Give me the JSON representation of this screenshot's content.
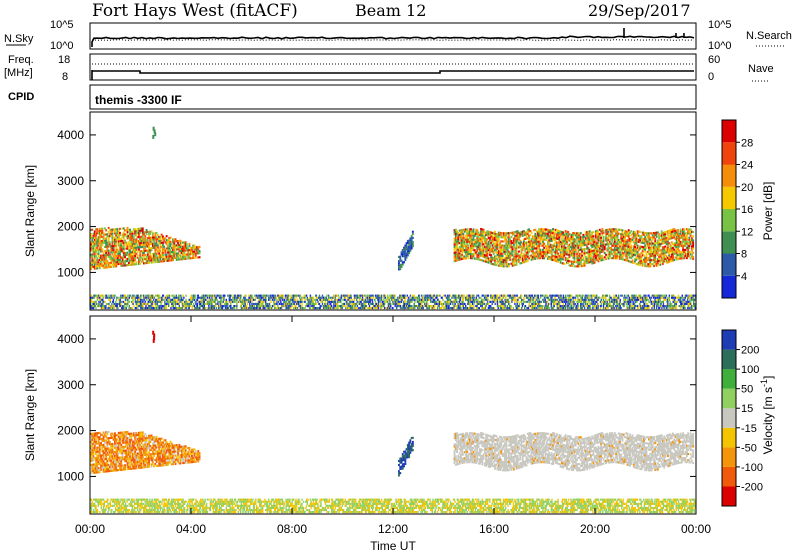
{
  "header": {
    "site": "Fort Hays West (fitACF)",
    "beam": "Beam 12",
    "date": "29/Sep/2017"
  },
  "top_panels": {
    "nsky_label": "N.Sky",
    "nsearch_label": "N.Search",
    "nsky_ticks": [
      "10^5",
      "10^0"
    ],
    "nsearch_ticks": [
      "10^5",
      "10^0"
    ],
    "freq_label_1": "Freq.",
    "freq_label_2": "[MHz]",
    "freq_ticks": [
      "18",
      "8"
    ],
    "nave_label": "Nave",
    "nave_ticks": [
      "60",
      "0"
    ],
    "cpid_label": "CPID",
    "cpid_text": "themis -3300 IF"
  },
  "chart_data": [
    {
      "type": "heatmap",
      "name": "power",
      "ylabel": "Slant Range [km]",
      "xlabel": "",
      "ylim": [
        180,
        4500
      ],
      "xlim_hours": [
        0,
        24
      ],
      "yticks": [
        1000,
        2000,
        3000,
        4000
      ],
      "colorbar_label": "Power [dB]",
      "colorbar_ticks": [
        "4",
        "8",
        "12",
        "16",
        "20",
        "24",
        "28"
      ],
      "colors": [
        "#1428d8",
        "#2c5aa8",
        "#3f8f52",
        "#78c244",
        "#f6c800",
        "#f58c0a",
        "#f0440c",
        "#dc0000"
      ],
      "regions": [
        {
          "t0": 0.0,
          "t1": 4.3,
          "r0": 1050,
          "r1": 1950,
          "level": "mixed-high",
          "note": "echo band"
        },
        {
          "t0": 14.4,
          "t1": 23.9,
          "r0": 1200,
          "r1": 2000,
          "level": "high",
          "note": "echo band"
        },
        {
          "t0": 12.2,
          "t1": 12.8,
          "r0": 1000,
          "r1": 1900,
          "level": "low"
        },
        {
          "t0": 0.0,
          "t1": 24.0,
          "r0": 200,
          "r1": 500,
          "level": "noise"
        }
      ]
    },
    {
      "type": "heatmap",
      "name": "velocity",
      "ylabel": "Slant Range [km]",
      "xlabel": "Time UT",
      "ylim": [
        180,
        4500
      ],
      "xlim_hours": [
        0,
        24
      ],
      "yticks": [
        1000,
        2000,
        3000,
        4000
      ],
      "xticks": [
        "00:00",
        "04:00",
        "08:00",
        "12:00",
        "16:00",
        "20:00",
        "00:00"
      ],
      "colorbar_label": "Velocity [m s^-1]",
      "colorbar_ticks": [
        "200",
        "100",
        "50",
        "15",
        "-15",
        "-50",
        "-100",
        "-200"
      ],
      "colors": [
        "#1e3cb4",
        "#2c6e5a",
        "#3fae3a",
        "#8fd060",
        "#c8c8c0",
        "#f4c400",
        "#f4940a",
        "#f05a0a",
        "#dc0000"
      ],
      "regions": [
        {
          "t0": 0.0,
          "t1": 4.3,
          "r0": 1050,
          "r1": 1950,
          "level": "negative"
        },
        {
          "t0": 14.4,
          "t1": 23.9,
          "r0": 1100,
          "r1": 2050,
          "level": "ground-scatter"
        },
        {
          "t0": 12.2,
          "t1": 12.8,
          "r0": 1000,
          "r1": 1900,
          "level": "positive"
        },
        {
          "t0": 0.0,
          "t1": 24.0,
          "r0": 200,
          "r1": 500,
          "level": "near-range"
        }
      ]
    }
  ]
}
